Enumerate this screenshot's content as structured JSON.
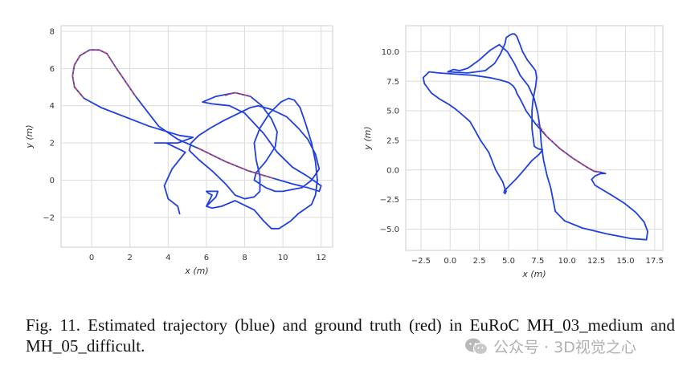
{
  "chart_data": [
    {
      "type": "line",
      "xlabel": "x (m)",
      "ylabel": "y (m)",
      "xlim": [
        -1.6,
        12.6
      ],
      "ylim": [
        -3.6,
        8.3
      ],
      "xticks": [
        0,
        2,
        4,
        6,
        8,
        10,
        12
      ],
      "yticks": [
        -2,
        0,
        2,
        4,
        6,
        8
      ],
      "grid": true,
      "series": [
        {
          "color": "#1f3fe0",
          "x": [
            4.6,
            4.5,
            4.0,
            3.8,
            4.2,
            4.9,
            3.9,
            3.3,
            4.5,
            5.3,
            4.6,
            3.0,
            0.5,
            -0.4,
            -0.9,
            -1.0,
            -0.9,
            -0.6,
            -0.1,
            0.4,
            0.8,
            1.3,
            2.3,
            3.5,
            4.5,
            5.6,
            7.0,
            8.2,
            9.5,
            10.5,
            11.3,
            11.9,
            12.0,
            11.3,
            10.5,
            9.7,
            9.0,
            8.0,
            7.2,
            6.3,
            5.8,
            6.5,
            7.5,
            8.3,
            8.9,
            9.4,
            9.7,
            9.6,
            9.1,
            8.6,
            8.5,
            9.1,
            9.6,
            10.0,
            11.0,
            11.5,
            11.9,
            11.7,
            11.3,
            10.8,
            10.2,
            9.4,
            8.7,
            8.3,
            7.9,
            7.5,
            6.9,
            6.2,
            5.6,
            5.2,
            5.1,
            5.6,
            6.3,
            7.0,
            7.5,
            8.0,
            8.5,
            8.8,
            8.8,
            8.6,
            8.5,
            8.8,
            9.3,
            9.9,
            10.3,
            10.6,
            10.9,
            11.2,
            11.5,
            11.7,
            11.8,
            11.7,
            11.5,
            10.8,
            10.4,
            9.8,
            9.4,
            9.0,
            8.5,
            7.5,
            6.8,
            6.3,
            6.0,
            6.1,
            6.2,
            6.3,
            6.1,
            6.0,
            6.2,
            6.6,
            6.5,
            6.2,
            6.0
          ],
          "y": [
            -1.8,
            -1.4,
            -1.0,
            -0.3,
            0.6,
            1.5,
            2.0,
            2.0,
            2.0,
            2.3,
            2.4,
            2.9,
            3.9,
            4.4,
            5.0,
            5.6,
            6.2,
            6.7,
            7.0,
            7.0,
            6.8,
            6.0,
            4.5,
            2.9,
            2.2,
            1.7,
            1.0,
            0.5,
            0.1,
            -0.2,
            -0.4,
            -0.6,
            -0.3,
            0.2,
            0.7,
            1.5,
            2.5,
            3.6,
            4.0,
            4.1,
            4.2,
            4.5,
            4.7,
            4.5,
            4.0,
            3.3,
            2.6,
            1.8,
            1.0,
            0.4,
            0.0,
            -0.4,
            -0.6,
            -0.6,
            -0.4,
            0.0,
            0.6,
            1.4,
            2.2,
            2.8,
            3.4,
            3.8,
            4.0,
            3.9,
            3.7,
            3.5,
            3.2,
            2.8,
            2.4,
            2.0,
            1.6,
            1.1,
            0.5,
            -0.2,
            -0.8,
            -1.0,
            -0.9,
            -0.6,
            0.2,
            1.1,
            2.0,
            2.8,
            3.6,
            4.2,
            4.4,
            4.3,
            3.9,
            3.0,
            2.0,
            1.0,
            0.0,
            -0.8,
            -1.3,
            -1.8,
            -2.2,
            -2.6,
            -2.6,
            -2.2,
            -1.6,
            -1.1,
            -1.4,
            -1.5,
            -1.4,
            -1.2,
            -1.0,
            -0.8,
            -0.7,
            -0.6,
            -0.6,
            -0.6,
            -0.9,
            -1.2,
            -1.4
          ]
        },
        {
          "color": "#d4404c",
          "dashed": true,
          "x": [
            2.3,
            1.3,
            0.8,
            0.4,
            -0.1,
            -0.6,
            -0.9,
            -1.0,
            -0.9,
            -0.4
          ],
          "y": [
            4.5,
            6.0,
            6.8,
            7.0,
            7.0,
            6.7,
            6.2,
            5.6,
            5.0,
            4.4
          ]
        },
        {
          "color": "#d4404c",
          "dashed": true,
          "x": [
            5.6,
            7.0,
            8.2,
            9.5
          ],
          "y": [
            1.7,
            1.0,
            0.5,
            0.1
          ]
        },
        {
          "color": "#d4404c",
          "dashed": true,
          "x": [
            7.0,
            7.5,
            8.3
          ],
          "y": [
            4.55,
            4.7,
            4.5
          ]
        }
      ]
    },
    {
      "type": "line",
      "xlabel": "x (m)",
      "ylabel": "y (m)",
      "xlim": [
        -3.8,
        18.2
      ],
      "ylim": [
        -6.8,
        12.2
      ],
      "xticks": [
        -2.5,
        0.0,
        2.5,
        5.0,
        7.5,
        10.0,
        12.5,
        15.0,
        17.5
      ],
      "xtick_labels": [
        "−2.5",
        "0.0",
        "2.5",
        "5.0",
        "7.5",
        "10.0",
        "12.5",
        "15.0",
        "17.5"
      ],
      "yticks": [
        -5.0,
        -2.5,
        0.0,
        2.5,
        5.0,
        7.5,
        10.0
      ],
      "ytick_labels": [
        "−5.0",
        "−2.5",
        "0.0",
        "2.5",
        "5.0",
        "7.5",
        "10.0"
      ],
      "grid": true,
      "series": [
        {
          "color": "#1f3fe0",
          "x": [
            4.7,
            4.6,
            4.7,
            4.8,
            4.7,
            4.5,
            3.9,
            3.3,
            2.6,
            2.1,
            1.7,
            1.0,
            0.4,
            -0.2,
            -0.9,
            -1.6,
            -2.2,
            -2.3,
            -1.8,
            -1.0,
            0.5,
            2.0,
            3.4,
            4.3,
            5.0,
            5.4,
            5.6,
            5.7,
            6.0,
            6.5,
            7.3,
            8.3,
            9.4,
            10.5,
            11.6,
            12.3,
            12.9,
            13.3,
            12.9,
            12.4,
            12.1,
            12.4,
            13.6,
            14.9,
            15.9,
            16.6,
            16.9,
            16.8,
            15.5,
            13.4,
            11.3,
            9.8,
            9.0,
            8.8,
            8.6,
            8.3,
            8.0,
            7.8,
            7.7,
            7.5,
            7.2,
            6.7,
            6.0,
            5.5,
            4.9,
            4.2,
            3.4,
            2.5,
            1.5,
            0.8,
            0.3,
            -0.2,
            1.5,
            3.0,
            3.8,
            4.3,
            4.7,
            4.8,
            5.1,
            5.3,
            5.5,
            5.7,
            5.9,
            6.2,
            6.6,
            7.0,
            7.3,
            7.4,
            7.3,
            7.1,
            7.0,
            7.0,
            7.2,
            7.5,
            7.9,
            7.6,
            7.0,
            6.4,
            5.8,
            5.3,
            5.0,
            4.8
          ],
          "y": [
            -1.6,
            -1.9,
            -2.0,
            -1.8,
            -1.6,
            -1.0,
            0.0,
            1.5,
            2.5,
            3.4,
            4.1,
            4.7,
            5.2,
            5.6,
            6.0,
            6.5,
            7.3,
            7.8,
            8.3,
            8.2,
            8.1,
            8.0,
            7.8,
            7.6,
            7.4,
            7.1,
            6.8,
            6.5,
            6.0,
            5.0,
            3.9,
            2.8,
            1.8,
            1.0,
            0.3,
            -0.1,
            -0.2,
            -0.3,
            -0.3,
            -0.5,
            -0.8,
            -1.3,
            -2.0,
            -2.8,
            -3.6,
            -4.4,
            -5.2,
            -5.9,
            -5.8,
            -5.4,
            -4.9,
            -4.3,
            -3.5,
            -2.5,
            -1.5,
            -0.5,
            0.8,
            2.2,
            3.5,
            4.8,
            6.0,
            7.1,
            8.0,
            9.0,
            10.0,
            10.6,
            10.1,
            9.3,
            8.6,
            8.4,
            8.5,
            8.3,
            8.2,
            8.4,
            9.0,
            9.8,
            10.7,
            11.2,
            11.4,
            11.5,
            11.5,
            11.3,
            10.8,
            10.0,
            9.3,
            8.8,
            8.4,
            7.8,
            7.0,
            6.0,
            5.0,
            3.5,
            2.0,
            1.8,
            1.7,
            1.3,
            0.8,
            0.1,
            -0.6,
            -1.1,
            -1.4,
            -1.6
          ]
        },
        {
          "color": "#d4404c",
          "dashed": true,
          "x": [
            7.5,
            8.3,
            9.4,
            10.5,
            11.6,
            12.3,
            12.9
          ],
          "y": [
            3.9,
            2.8,
            1.8,
            1.0,
            0.3,
            -0.1,
            -0.2
          ]
        }
      ]
    }
  ],
  "caption": {
    "text": "Fig. 11.  Estimated trajectory (blue) and ground truth (red) in EuRoC MH_03_medium and MH_05_difficult."
  },
  "watermark": {
    "text": "公众号 · 3D视觉之心",
    "icon": "wechat-icon"
  }
}
